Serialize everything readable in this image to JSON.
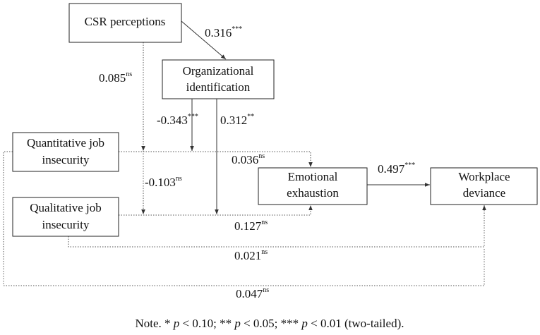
{
  "nodes": [
    {
      "lines": [
        "CSR perceptions"
      ]
    },
    {
      "lines": [
        "Organizational",
        "identification"
      ]
    },
    {
      "lines": [
        "Quantitative job",
        "insecurity"
      ]
    },
    {
      "lines": [
        "Qualitative job",
        "insecurity"
      ]
    },
    {
      "lines": [
        "Emotional",
        "exhaustion"
      ]
    },
    {
      "lines": [
        "Workplace",
        "deviance"
      ]
    }
  ],
  "edges": [
    {
      "coefficient": 0.316,
      "significance": "***"
    },
    {
      "coefficient": 0.085,
      "significance": "ns"
    },
    {
      "coefficient": -0.343,
      "significance": "***"
    },
    {
      "coefficient": 0.312,
      "significance": "**"
    },
    {
      "coefficient": 0.036,
      "significance": "ns"
    },
    {
      "coefficient": -0.103,
      "significance": "ns"
    },
    {
      "coefficient": 0.127,
      "significance": "ns"
    },
    {
      "coefficient": 0.497,
      "significance": "***"
    },
    {
      "coefficient": 0.021,
      "significance": "ns"
    },
    {
      "coefficient": 0.047,
      "significance": "ns"
    }
  ],
  "note": [
    "Note. * ",
    "p",
    " < 0.10; ** ",
    "p",
    " < 0.05; *** ",
    "p",
    " < 0.01 (two-tailed)."
  ]
}
